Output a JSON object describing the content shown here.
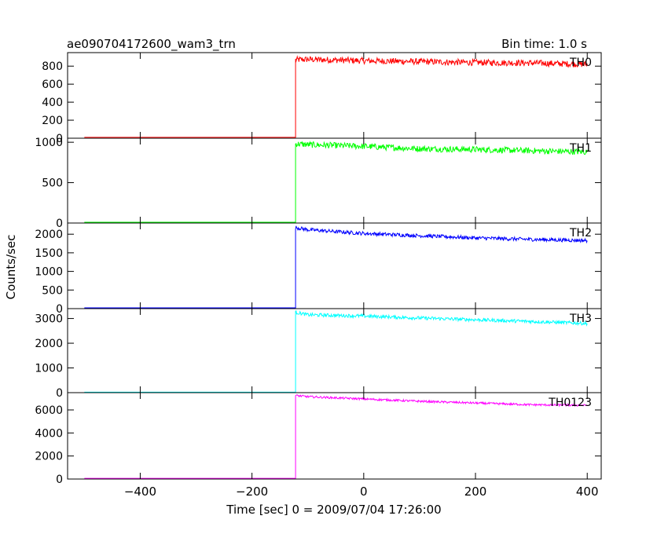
{
  "header": {
    "title": "ae090704172600_wam3_trn",
    "bin_time": "Bin time: 1.0 s"
  },
  "axes": {
    "xlabel": "Time [sec] 0 = 2009/07/04 17:26:00",
    "ylabel": "Counts/sec"
  },
  "chart_data": {
    "type": "line",
    "title": "ae090704172600_wam3_trn",
    "xlabel": "Time [sec] 0 = 2009/07/04 17:26:00",
    "ylabel": "Counts/sec",
    "xlim": [
      -530,
      425
    ],
    "x_ticks": [
      -400,
      -200,
      0,
      200,
      400
    ],
    "x_tick_labels": [
      "−400",
      "−200",
      "0",
      "200",
      "400"
    ],
    "trigger_time": -122,
    "x_start": -500,
    "x_end": 400,
    "panels": [
      {
        "name": "TH0",
        "color": "#ff0000",
        "ylim": [
          0,
          950
        ],
        "yticks": [
          0,
          200,
          400,
          600,
          800
        ],
        "pre_level": 10,
        "post_points": [
          [
            -122,
            870
          ],
          [
            -100,
            875
          ],
          [
            0,
            860
          ],
          [
            100,
            850
          ],
          [
            200,
            840
          ],
          [
            300,
            835
          ],
          [
            400,
            820
          ]
        ],
        "noise": 35
      },
      {
        "name": "TH1",
        "color": "#00ff00",
        "ylim": [
          0,
          1050
        ],
        "yticks": [
          0,
          500,
          1000
        ],
        "pre_level": 10,
        "post_points": [
          [
            -122,
            980
          ],
          [
            -100,
            970
          ],
          [
            0,
            950
          ],
          [
            100,
            920
          ],
          [
            200,
            910
          ],
          [
            300,
            895
          ],
          [
            400,
            880
          ]
        ],
        "noise": 38
      },
      {
        "name": "TH2",
        "color": "#0000ff",
        "ylim": [
          0,
          2300
        ],
        "yticks": [
          0,
          500,
          1000,
          1500,
          2000
        ],
        "pre_level": 20,
        "post_points": [
          [
            -122,
            2180
          ],
          [
            -100,
            2120
          ],
          [
            0,
            2020
          ],
          [
            100,
            1960
          ],
          [
            200,
            1900
          ],
          [
            300,
            1860
          ],
          [
            400,
            1830
          ]
        ],
        "noise": 50
      },
      {
        "name": "TH3",
        "color": "#00ffff",
        "ylim": [
          0,
          3400
        ],
        "yticks": [
          0,
          1000,
          2000,
          3000
        ],
        "pre_level": 20,
        "post_points": [
          [
            -122,
            3250
          ],
          [
            -100,
            3150
          ],
          [
            0,
            3100
          ],
          [
            100,
            3020
          ],
          [
            200,
            2950
          ],
          [
            300,
            2880
          ],
          [
            400,
            2800
          ]
        ],
        "noise": 70
      },
      {
        "name": "TH0123",
        "color": "#ff00ff",
        "ylim": [
          0,
          7500
        ],
        "yticks": [
          0,
          2000,
          4000,
          6000
        ],
        "pre_level": 60,
        "post_points": [
          [
            -122,
            7250
          ],
          [
            -100,
            7150
          ],
          [
            0,
            6950
          ],
          [
            100,
            6750
          ],
          [
            200,
            6600
          ],
          [
            300,
            6450
          ],
          [
            400,
            6400
          ]
        ],
        "noise": 90
      }
    ]
  }
}
